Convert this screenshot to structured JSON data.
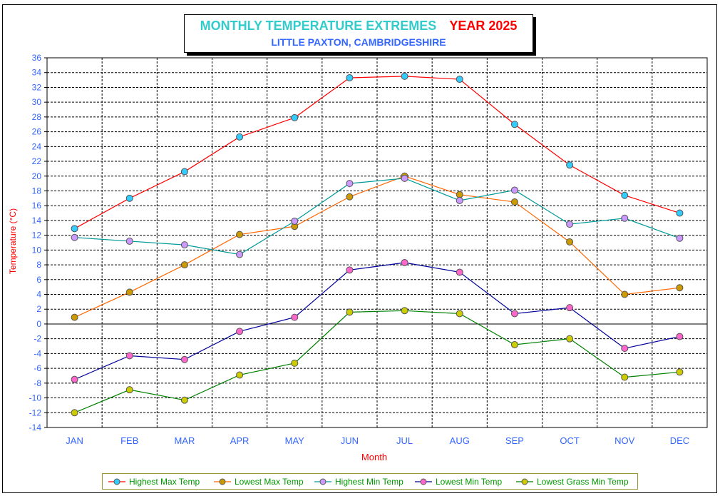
{
  "title": {
    "main": "MONTHLY TEMPERATURE EXTREMES",
    "year": "YEAR  2025",
    "subtitle": "LITTLE PAXTON, CAMBRIDGESHIRE"
  },
  "chart_data": {
    "type": "line",
    "xlabel": "Month",
    "ylabel": "Temperature (°C)",
    "ylim": [
      -14,
      36
    ],
    "ytick_step": 2,
    "grid": true,
    "legend_position": "bottom",
    "categories": [
      "JAN",
      "FEB",
      "MAR",
      "APR",
      "MAY",
      "JUN",
      "JUL",
      "AUG",
      "SEP",
      "OCT",
      "NOV",
      "DEC"
    ],
    "series": [
      {
        "name": "Highest Max Temp",
        "line_color": "#ff0000",
        "marker_color": "#33ccff",
        "values": [
          12.9,
          17.0,
          20.6,
          25.3,
          27.9,
          33.3,
          33.5,
          33.1,
          27.0,
          21.5,
          17.4,
          15.0
        ]
      },
      {
        "name": "Lowest Max Temp",
        "line_color": "#ff6600",
        "marker_color": "#cc9900",
        "values": [
          0.9,
          4.3,
          8.0,
          12.1,
          13.2,
          17.2,
          20.0,
          17.5,
          16.5,
          11.1,
          4.0,
          4.9
        ]
      },
      {
        "name": "Highest Min Temp",
        "line_color": "#009999",
        "marker_color": "#cc99ff",
        "values": [
          11.7,
          11.2,
          10.7,
          9.4,
          13.9,
          19.0,
          19.7,
          16.7,
          18.1,
          13.5,
          14.3,
          11.6
        ]
      },
      {
        "name": "Lowest Min Temp",
        "line_color": "#000099",
        "marker_color": "#ff66cc",
        "values": [
          -7.5,
          -4.3,
          -4.8,
          -1.0,
          0.9,
          7.3,
          8.3,
          7.0,
          1.4,
          2.2,
          -3.3,
          -1.7
        ]
      },
      {
        "name": "Lowest Grass Min Temp",
        "line_color": "#008000",
        "marker_color": "#cccc00",
        "values": [
          -12.0,
          -8.9,
          -10.3,
          -6.9,
          -5.3,
          1.6,
          1.8,
          1.4,
          -2.8,
          -2.0,
          -7.2,
          -6.5
        ]
      }
    ]
  },
  "colors": {
    "axis_text": "#3366ff",
    "axis_title": "#ff0000",
    "legend_border": "#999933",
    "legend_text": "#009900"
  }
}
